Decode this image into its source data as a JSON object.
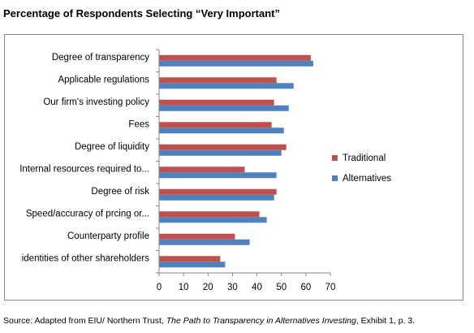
{
  "title": "Percentage of Respondents Selecting “Very Important”",
  "source": {
    "prefix": "Source: Adapted from EIU/ Northern Trust, ",
    "italic": "The Path to Transparency in Alternatives Investing",
    "suffix": ", Exhibit 1, p. 3."
  },
  "chart_data": {
    "type": "bar",
    "orientation": "horizontal",
    "categories": [
      "Degree of transparency",
      "Applicable regulations",
      "Our firm's investing policy",
      "Fees",
      "Degree of liquidity",
      "Internal resources required to...",
      "Degree of risk",
      "Speed/accuracy of prcing or...",
      "Counterparty profile",
      "identities of other shareholders"
    ],
    "series": [
      {
        "name": "Traditional",
        "color": "#c0504d",
        "values": [
          62,
          48,
          47,
          46,
          52,
          35,
          48,
          41,
          31,
          25
        ]
      },
      {
        "name": "Alternatives",
        "color": "#4f81bd",
        "values": [
          63,
          55,
          53,
          51,
          50,
          48,
          47,
          44,
          37,
          27
        ]
      }
    ],
    "xlim": [
      0,
      70
    ],
    "xticks": [
      "0",
      "10",
      "20",
      "30",
      "40",
      "50",
      "60",
      "70"
    ],
    "legend_position": "right",
    "grid": false
  }
}
